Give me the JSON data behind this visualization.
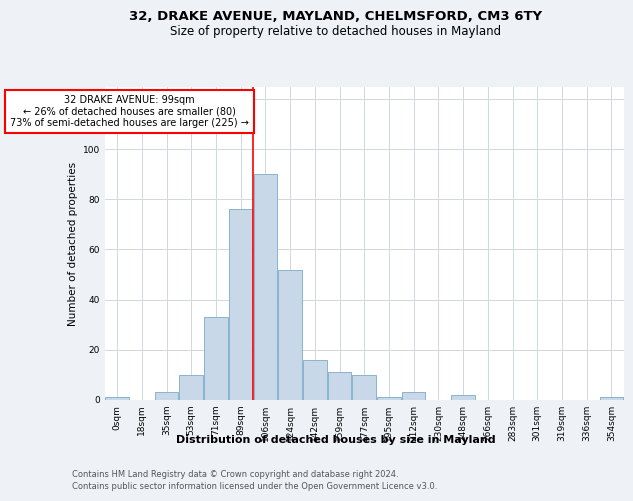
{
  "title1": "32, DRAKE AVENUE, MAYLAND, CHELMSFORD, CM3 6TY",
  "title2": "Size of property relative to detached houses in Mayland",
  "xlabel": "Distribution of detached houses by size in Mayland",
  "ylabel": "Number of detached properties",
  "bar_labels": [
    "0sqm",
    "18sqm",
    "35sqm",
    "53sqm",
    "71sqm",
    "89sqm",
    "106sqm",
    "124sqm",
    "142sqm",
    "159sqm",
    "177sqm",
    "195sqm",
    "212sqm",
    "230sqm",
    "248sqm",
    "266sqm",
    "283sqm",
    "301sqm",
    "319sqm",
    "336sqm",
    "354sqm"
  ],
  "bar_values": [
    1,
    0,
    3,
    10,
    33,
    76,
    90,
    52,
    16,
    11,
    10,
    1,
    3,
    0,
    2,
    0,
    0,
    0,
    0,
    0,
    1
  ],
  "bar_color": "#c8d8e8",
  "bar_edgecolor": "#7aaac8",
  "vline_x": 5.5,
  "annotation_text": "32 DRAKE AVENUE: 99sqm\n← 26% of detached houses are smaller (80)\n73% of semi-detached houses are larger (225) →",
  "annotation_box_color": "white",
  "annotation_box_edgecolor": "red",
  "vline_color": "red",
  "ylim": [
    0,
    125
  ],
  "yticks": [
    0,
    20,
    40,
    60,
    80,
    100,
    120
  ],
  "footer1": "Contains HM Land Registry data © Crown copyright and database right 2024.",
  "footer2": "Contains public sector information licensed under the Open Government Licence v3.0.",
  "background_color": "#eef2f7",
  "plot_background": "white",
  "grid_color": "#d0d8e0",
  "title1_fontsize": 9.5,
  "title2_fontsize": 8.5,
  "ylabel_fontsize": 7.5,
  "xlabel_fontsize": 8,
  "tick_fontsize": 6.5,
  "annotation_fontsize": 7,
  "footer_fontsize": 6
}
